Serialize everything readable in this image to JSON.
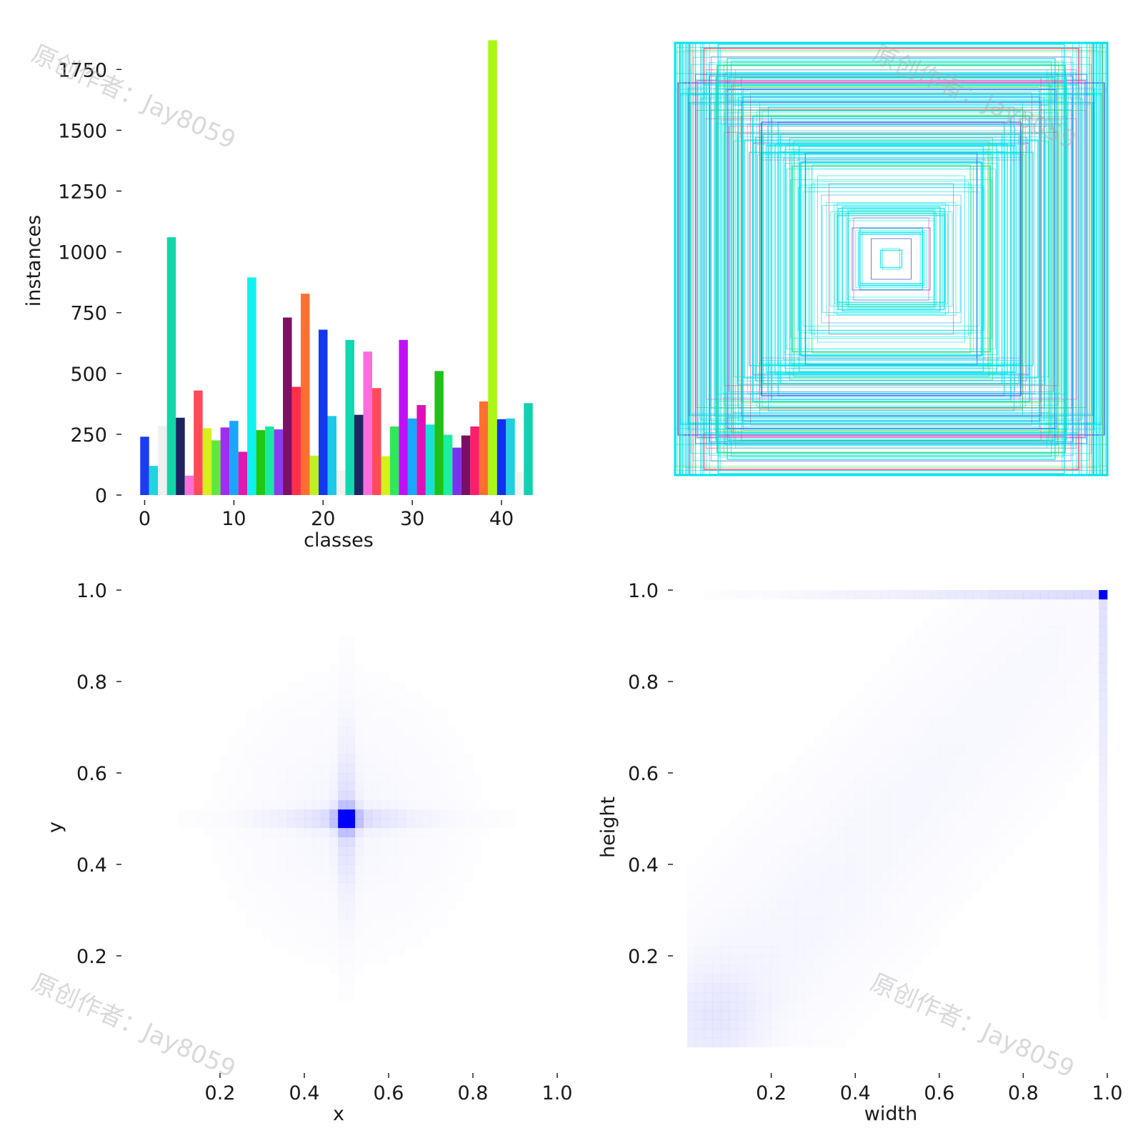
{
  "watermark": "原创作者：Jay8059",
  "chart_data": [
    {
      "type": "bar",
      "xlabel": "classes",
      "ylabel": "instances",
      "xticks": [
        0,
        10,
        20,
        30,
        40
      ],
      "yticks": [
        0,
        250,
        500,
        750,
        1000,
        1250,
        1500,
        1750
      ],
      "xlim": [
        -1,
        44
      ],
      "ylim": [
        0,
        1880
      ],
      "grid": false,
      "categories": [
        0,
        1,
        2,
        3,
        4,
        5,
        6,
        7,
        8,
        9,
        10,
        11,
        12,
        13,
        14,
        15,
        16,
        17,
        18,
        19,
        20,
        21,
        22,
        23,
        24,
        25,
        26,
        27,
        28,
        29,
        30,
        31,
        32,
        33,
        34,
        35,
        36,
        37,
        38,
        39,
        40,
        41,
        42,
        43
      ],
      "values": [
        240,
        120,
        285,
        1060,
        318,
        80,
        430,
        275,
        225,
        278,
        305,
        178,
        895,
        267,
        282,
        270,
        730,
        445,
        828,
        162,
        680,
        325,
        100,
        638,
        330,
        590,
        440,
        160,
        282,
        638,
        315,
        370,
        290,
        510,
        248,
        195,
        245,
        282,
        385,
        1870,
        312,
        315,
        95,
        378
      ],
      "colors": [
        "#1a3cf2",
        "#1fd6e0",
        "#f0f0f0",
        "#12d6a8",
        "#1c2460",
        "#ff6ed8",
        "#ff4a5a",
        "#d6f019",
        "#5fe83c",
        "#a02ef2",
        "#1aa6ff",
        "#e019b0",
        "#0ff0f0",
        "#1ec814",
        "#1aeaa0",
        "#8c3cf0",
        "#7c1064",
        "#ff2e4a",
        "#ff7030",
        "#c0f020",
        "#1238f0",
        "#1ec8e8",
        "#f2f2f2",
        "#10d8b0",
        "#1c2660",
        "#ff6cdc",
        "#ff4a5a",
        "#d8f01a",
        "#2ee85a",
        "#c010f8",
        "#18a8ff",
        "#e010b8",
        "#19e0d6",
        "#20c018",
        "#19f0a0",
        "#7c30f0",
        "#7a1064",
        "#ff1e6a",
        "#ff7030",
        "#a8f812",
        "#1030f0",
        "#20d0e0",
        "#f4f4f4",
        "#12d0b0"
      ]
    },
    {
      "type": "boxes"
    },
    {
      "type": "heatmap",
      "xlabel": "x",
      "ylabel": "y",
      "xticks": [
        "0.2",
        "0.4",
        "0.6",
        "0.8",
        "1.0"
      ],
      "yticks": [
        "0.2",
        "0.4",
        "0.6",
        "0.8",
        "1.0"
      ],
      "xlim": [
        0,
        1
      ],
      "ylim": [
        0,
        1
      ],
      "peak": [
        0.5,
        0.5
      ],
      "color": "#0000ff"
    },
    {
      "type": "heatmap",
      "xlabel": "width",
      "ylabel": "height",
      "xticks": [
        "0.2",
        "0.4",
        "0.6",
        "0.8",
        "1.0"
      ],
      "yticks": [
        "0.2",
        "0.4",
        "0.6",
        "0.8",
        "1.0"
      ],
      "xlim": [
        0,
        1
      ],
      "ylim": [
        0,
        1
      ],
      "peak": [
        0.99,
        0.99
      ],
      "color": "#0000ff"
    }
  ]
}
